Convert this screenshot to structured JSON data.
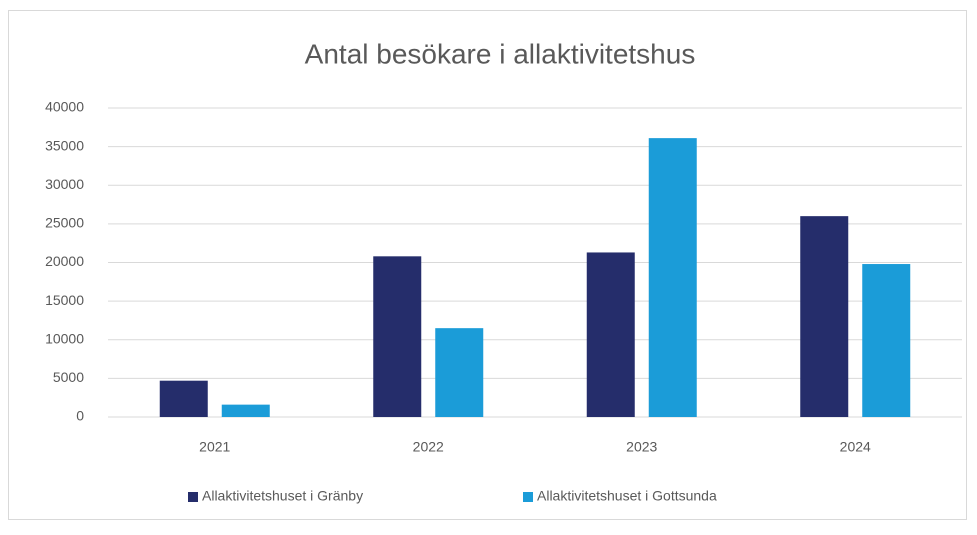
{
  "chart_data": {
    "type": "bar",
    "title": "Antal besökare i allaktivitetshus",
    "categories": [
      "2021",
      "2022",
      "2023",
      "2024"
    ],
    "series": [
      {
        "name": "Allaktivitetshuset i Gränby",
        "color": "#252d6b",
        "values": [
          4700,
          20800,
          21300,
          26000
        ]
      },
      {
        "name": "Allaktivitetshuset i Gottsunda",
        "color": "#1b9cd8",
        "values": [
          1600,
          11500,
          36100,
          19800
        ]
      }
    ],
    "ylim": [
      0,
      40000
    ],
    "yticks": [
      0,
      5000,
      10000,
      15000,
      20000,
      25000,
      30000,
      35000,
      40000
    ],
    "grid": true,
    "legend": "bottom"
  }
}
